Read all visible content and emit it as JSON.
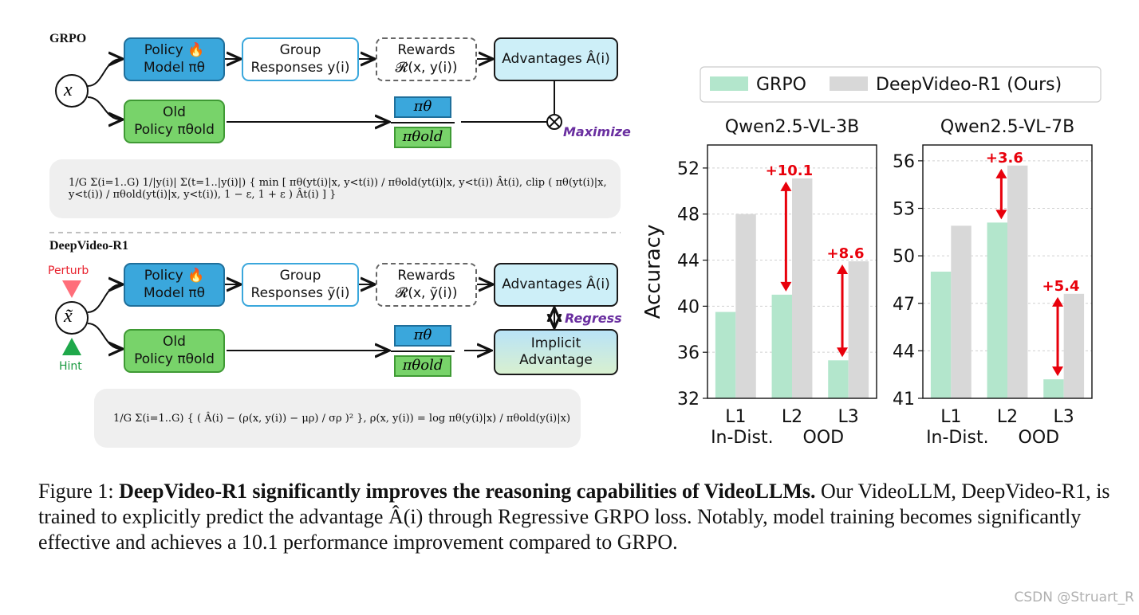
{
  "diagram": {
    "grpo_label": "GRPO",
    "deepvideo_label": "DeepVideo-R1",
    "x_symbol": "x",
    "x_tilde_symbol": "x̃",
    "perturb_label": "Perturb",
    "hint_label": "Hint",
    "policy_model": "Policy 🔥\nModel πθ",
    "old_policy": "Old\nPolicy πθold",
    "group_responses_top": "Group\nResponses y(i)",
    "group_responses_bottom": "Group\nResponses ỹ(i)",
    "rewards_top": "Rewards\n𝓡(x, y(i))",
    "rewards_bottom": "Rewards\n𝓡(x, ỹ(i))",
    "advantages": "Advantages Â(i)",
    "implicit_advantage": "Implicit\nAdvantage",
    "ratio_num": "πθ",
    "ratio_den": "πθold",
    "maximize_label": "Maximize",
    "regress_label": "Regress",
    "grpo_formula": "1/G Σ(i=1..G) 1/|y(i)| Σ(t=1..|y(i)|) { min [ πθ(yt(i)|x, y<t(i)) / πθold(yt(i)|x, y<t(i)) Ât(i), clip ( πθ(yt(i)|x, y<t(i)) / πθold(yt(i)|x, y<t(i)), 1 − ε, 1 + ε ) Ât(i) ] }",
    "deepvideo_formula": "1/G Σ(i=1..G) { ( Â(i) − (ρ(x, y(i)) − μρ) / σρ )² },     ρ(x, y(i)) = log πθ(y(i)|x) / πθold(y(i)|x)"
  },
  "chart_data": [
    {
      "type": "bar",
      "title": "Qwen2.5-VL-3B",
      "ylabel": "Accuracy",
      "categories": [
        "L1",
        "L2",
        "L3"
      ],
      "group_labels": [
        "In-Dist.",
        "OOD"
      ],
      "ylim": [
        32,
        54
      ],
      "yticks": [
        32,
        36,
        40,
        44,
        48,
        52
      ],
      "series": [
        {
          "name": "GRPO",
          "values": [
            39.5,
            41.0,
            35.3
          ]
        },
        {
          "name": "DeepVideo-R1 (Ours)",
          "values": [
            48.0,
            51.1,
            43.9
          ]
        }
      ],
      "annotations": [
        {
          "category": "L2",
          "label": "+10.1"
        },
        {
          "category": "L3",
          "label": "+8.6"
        }
      ]
    },
    {
      "type": "bar",
      "title": "Qwen2.5-VL-7B",
      "ylabel": "",
      "categories": [
        "L1",
        "L2",
        "L3"
      ],
      "group_labels": [
        "In-Dist.",
        "OOD"
      ],
      "ylim": [
        41,
        57
      ],
      "yticks": [
        41,
        44,
        47,
        50,
        53,
        56
      ],
      "series": [
        {
          "name": "GRPO",
          "values": [
            49.0,
            52.1,
            42.2
          ]
        },
        {
          "name": "DeepVideo-R1 (Ours)",
          "values": [
            51.9,
            55.7,
            47.6
          ]
        }
      ],
      "annotations": [
        {
          "category": "L2",
          "label": "+3.6"
        },
        {
          "category": "L3",
          "label": "+5.4"
        }
      ]
    }
  ],
  "legend": {
    "items": [
      {
        "name": "GRPO",
        "color": "#b3e6cc"
      },
      {
        "name": "DeepVideo-R1 (Ours)",
        "color": "#d8d8d8"
      }
    ]
  },
  "colors": {
    "grpo": "#b3e6cc",
    "ours": "#d8d8d8",
    "arrow": "#e8000b",
    "policy": "#3aa7dc",
    "old_policy": "#78d36a",
    "accent_purple": "#6a2fa0"
  },
  "caption": {
    "prefix": "Figure 1: ",
    "bold": "DeepVideo-R1 significantly improves the reasoning capabilities of VideoLLMs.",
    "rest": " Our VideoLLM, DeepVideo-R1, is trained to explicitly predict the advantage Â(i) through Regressive GRPO loss. Notably, model training becomes significantly effective and achieves a 10.1 performance improvement compared to GRPO."
  },
  "watermark": "CSDN @Struart_R"
}
